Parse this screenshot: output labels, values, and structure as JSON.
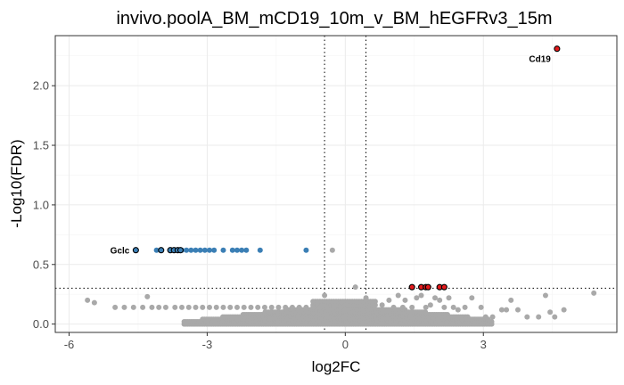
{
  "chart_data": {
    "type": "scatter",
    "title": "invivo.poolA_BM_mCD19_10m_v_BM_hEGFRv3_15m",
    "xlabel": "log2FC",
    "ylabel": "-Log10(FDR)",
    "xlim": [
      -6.3,
      5.9
    ],
    "ylim": [
      -0.07,
      2.42
    ],
    "x_ticks": [
      -6,
      -3,
      0,
      3
    ],
    "x_tick_labels": [
      "-6",
      "-3",
      "0",
      "3"
    ],
    "y_ticks": [
      0.0,
      0.5,
      1.0,
      1.5,
      2.0
    ],
    "y_tick_labels": [
      "0.0",
      "0.5",
      "1.0",
      "1.5",
      "2.0"
    ],
    "grid": true,
    "thresholds": {
      "fdr_line_y": 0.301,
      "log2fc_lines_x": [
        -0.45,
        0.45
      ]
    },
    "colors": {
      "nonsig": "#a9a9a9",
      "down": "#3b7fb5",
      "up": "#e41a1c",
      "outline": "#000000"
    },
    "series": [
      {
        "group": "nonsig",
        "color": "#a9a9a9",
        "points": [
          [
            -5.6,
            0.2
          ],
          [
            -5.45,
            0.18
          ],
          [
            -5.0,
            0.14
          ],
          [
            -4.8,
            0.14
          ],
          [
            -4.6,
            0.14
          ],
          [
            -4.4,
            0.14
          ],
          [
            -4.2,
            0.14
          ],
          [
            -4.05,
            0.14
          ],
          [
            -4.3,
            0.23
          ],
          [
            -3.9,
            0.14
          ],
          [
            -3.7,
            0.14
          ],
          [
            -3.55,
            0.14
          ],
          [
            -3.4,
            0.14
          ],
          [
            -3.25,
            0.14
          ],
          [
            -3.1,
            0.14
          ],
          [
            -2.95,
            0.14
          ],
          [
            -2.8,
            0.14
          ],
          [
            -2.65,
            0.14
          ],
          [
            -2.5,
            0.14
          ],
          [
            -2.35,
            0.14
          ],
          [
            -2.2,
            0.14
          ],
          [
            -2.05,
            0.14
          ],
          [
            -1.9,
            0.14
          ],
          [
            -1.75,
            0.14
          ],
          [
            -1.6,
            0.14
          ],
          [
            -1.45,
            0.14
          ],
          [
            -1.3,
            0.14
          ],
          [
            -1.15,
            0.14
          ],
          [
            -1.0,
            0.14
          ],
          [
            -0.85,
            0.14
          ],
          [
            -0.7,
            0.14
          ],
          [
            -0.55,
            0.14
          ],
          [
            -0.4,
            0.14
          ],
          [
            -0.25,
            0.14
          ],
          [
            -0.1,
            0.14
          ],
          [
            -0.45,
            0.24
          ],
          [
            -0.28,
            0.62
          ],
          [
            0.22,
            0.31
          ],
          [
            0.45,
            0.22
          ],
          [
            0.6,
            0.16
          ],
          [
            0.8,
            0.16
          ],
          [
            0.95,
            0.2
          ],
          [
            1.05,
            0.14
          ],
          [
            1.15,
            0.24
          ],
          [
            1.25,
            0.14
          ],
          [
            1.3,
            0.2
          ],
          [
            1.45,
            0.14
          ],
          [
            1.55,
            0.22
          ],
          [
            1.65,
            0.24
          ],
          [
            1.75,
            0.14
          ],
          [
            1.85,
            0.16
          ],
          [
            1.95,
            0.22
          ],
          [
            2.05,
            0.2
          ],
          [
            2.15,
            0.14
          ],
          [
            2.25,
            0.22
          ],
          [
            2.35,
            0.14
          ],
          [
            2.45,
            0.12
          ],
          [
            2.6,
            0.14
          ],
          [
            2.75,
            0.22
          ],
          [
            2.95,
            0.14
          ],
          [
            3.05,
            0.06
          ],
          [
            3.2,
            0.06
          ],
          [
            3.4,
            0.12
          ],
          [
            3.5,
            0.12
          ],
          [
            3.6,
            0.2
          ],
          [
            3.75,
            0.12
          ],
          [
            3.95,
            0.06
          ],
          [
            4.2,
            0.06
          ],
          [
            4.35,
            0.24
          ],
          [
            4.45,
            0.1
          ],
          [
            4.55,
            0.06
          ],
          [
            4.75,
            0.12
          ],
          [
            5.4,
            0.26
          ]
        ]
      },
      {
        "group": "down",
        "color": "#3b7fb5",
        "points": [
          [
            -4.1,
            0.62
          ],
          [
            -3.55,
            0.62
          ],
          [
            -3.45,
            0.62
          ],
          [
            -3.35,
            0.62
          ],
          [
            -3.25,
            0.62
          ],
          [
            -3.15,
            0.62
          ],
          [
            -3.05,
            0.62
          ],
          [
            -2.95,
            0.62
          ],
          [
            -2.85,
            0.62
          ],
          [
            -2.65,
            0.62
          ],
          [
            -2.45,
            0.62
          ],
          [
            -2.35,
            0.62
          ],
          [
            -2.25,
            0.62
          ],
          [
            -2.15,
            0.62
          ],
          [
            -1.85,
            0.62
          ],
          [
            -0.85,
            0.62
          ]
        ]
      },
      {
        "group": "down-labeled",
        "color": "#3b7fb5",
        "outlined": true,
        "points": [
          [
            -4.55,
            0.62
          ],
          [
            -4.0,
            0.62
          ],
          [
            -3.8,
            0.62
          ],
          [
            -3.72,
            0.62
          ],
          [
            -3.64,
            0.62
          ],
          [
            -3.58,
            0.62
          ]
        ]
      },
      {
        "group": "up-labeled",
        "color": "#e41a1c",
        "outlined": true,
        "points": [
          [
            1.45,
            0.31
          ],
          [
            1.65,
            0.31
          ],
          [
            1.75,
            0.31
          ],
          [
            1.8,
            0.31
          ],
          [
            2.05,
            0.31
          ],
          [
            2.15,
            0.31
          ],
          [
            4.6,
            2.31
          ]
        ]
      }
    ],
    "annotations": [
      {
        "text": "Gclc",
        "x": -4.55,
        "y": 0.62,
        "side": "left"
      },
      {
        "text": "Cd19",
        "x": 4.6,
        "y": 2.31,
        "side": "below-left"
      }
    ]
  }
}
